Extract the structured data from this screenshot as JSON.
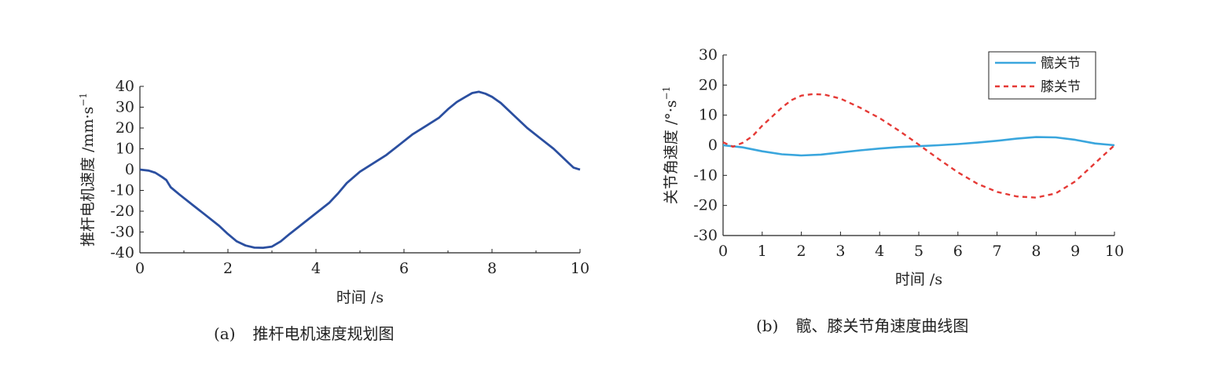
{
  "chart_data": [
    {
      "type": "line",
      "caption_tag": "(a)",
      "caption_text": "推杆电机速度规划图",
      "xlabel": "时间 /s",
      "ylabel": "推杆电机速度 /mm·s",
      "ylabel_sup": "−1",
      "xlim": [
        0,
        10
      ],
      "ylim": [
        -40,
        40
      ],
      "xticks": [
        "0",
        "2",
        "4",
        "6",
        "8",
        "10"
      ],
      "yticks": [
        "40",
        "30",
        "20",
        "10",
        "0",
        "-10",
        "-20",
        "-30",
        "-40"
      ],
      "grid": false,
      "color": "#2b4fa0",
      "series": [
        {
          "x": [
            0,
            0.2,
            0.35,
            0.5,
            0.6,
            0.7,
            0.9,
            1.2,
            1.5,
            1.8,
            2.0,
            2.2,
            2.4,
            2.6,
            2.8,
            3.0,
            3.2,
            3.4,
            3.7,
            4.0,
            4.3,
            4.5,
            4.7,
            5.0,
            5.3,
            5.6,
            5.9,
            6.2,
            6.5,
            6.8,
            7.0,
            7.2,
            7.4,
            7.55,
            7.7,
            7.85,
            8.0,
            8.2,
            8.5,
            8.8,
            9.1,
            9.4,
            9.6,
            9.75,
            9.85,
            9.95,
            10
          ],
          "values": [
            0,
            -0.5,
            -1.5,
            -3.5,
            -5,
            -8.5,
            -12,
            -17,
            -22,
            -27,
            -31,
            -34.5,
            -36.5,
            -37.5,
            -37.6,
            -37,
            -34.5,
            -31,
            -26,
            -21,
            -16,
            -11.5,
            -6.5,
            -1,
            3,
            7,
            12,
            17,
            21,
            25,
            29,
            32.5,
            35,
            36.8,
            37.4,
            36.5,
            35,
            32,
            26,
            20,
            15,
            10,
            6,
            3,
            1,
            0.3,
            0
          ]
        }
      ]
    },
    {
      "type": "line",
      "caption_tag": "(b)",
      "caption_text": "髋、膝关节角速度曲线图",
      "xlabel": "时间 /s",
      "ylabel": "关节角速度 /°·s",
      "ylabel_sup": "−1",
      "xlim": [
        0,
        10
      ],
      "ylim": [
        -30,
        30
      ],
      "xticks": [
        "0",
        "1",
        "2",
        "3",
        "4",
        "5",
        "6",
        "7",
        "8",
        "9",
        "10"
      ],
      "yticks": [
        "30",
        "20",
        "10",
        "0",
        "-10",
        "-20",
        "-30"
      ],
      "grid": false,
      "legend": "top-right",
      "series": [
        {
          "name": "髋关节",
          "color": "#3aa6dd",
          "dash": false,
          "x": [
            0,
            0.5,
            1,
            1.5,
            2,
            2.5,
            3,
            3.5,
            4,
            4.5,
            5,
            5.5,
            6,
            6.5,
            7,
            7.5,
            8,
            8.5,
            9,
            9.5,
            10
          ],
          "values": [
            0,
            -0.7,
            -2,
            -3,
            -3.4,
            -3.1,
            -2.4,
            -1.7,
            -1.1,
            -0.6,
            -0.3,
            0,
            0.4,
            0.9,
            1.5,
            2.2,
            2.7,
            2.6,
            1.8,
            0.6,
            0
          ]
        },
        {
          "name": "膝关节",
          "color": "#e53935",
          "dash": true,
          "x": [
            0,
            0.25,
            0.5,
            0.75,
            1,
            1.25,
            1.5,
            1.75,
            2,
            2.3,
            2.6,
            3,
            3.5,
            4,
            4.5,
            5,
            5.5,
            6,
            6.5,
            7,
            7.5,
            8,
            8.5,
            9,
            9.5,
            9.75,
            10
          ],
          "values": [
            1,
            -0.5,
            0.8,
            3,
            6.5,
            9.5,
            12.5,
            15,
            16.5,
            17,
            16.8,
            15.5,
            12.5,
            9,
            4.8,
            0.2,
            -4.5,
            -9,
            -12.8,
            -15.5,
            -17,
            -17.4,
            -16,
            -12,
            -6,
            -3,
            0
          ]
        }
      ]
    }
  ]
}
